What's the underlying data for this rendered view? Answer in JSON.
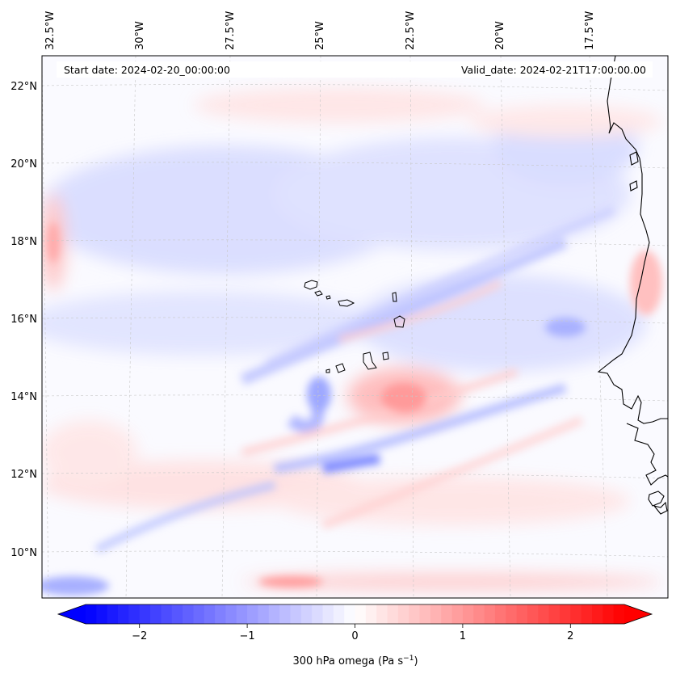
{
  "map": {
    "start_date": "Start date: 2024-02-20_00:00:00",
    "valid_date": "Valid_date: 2024-02-21T17:00:00.00",
    "lon_labels": [
      "32.5°W",
      "30°W",
      "27.5°W",
      "25°W",
      "22.5°W",
      "20°W",
      "17.5°W"
    ],
    "lat_labels": [
      "22°N",
      "20°N",
      "18°N",
      "16°N",
      "14°N",
      "12°N",
      "10°N"
    ],
    "field": "300 hPa omega",
    "units": "(Pa s⁻¹)",
    "colormap": "bwr",
    "colors": {
      "negative": "#0000ff",
      "zero": "#ffffff",
      "positive": "#ff0000",
      "grid": "#c8c8c8",
      "coast": "#000000"
    },
    "gridlines": true
  },
  "colorbar": {
    "label": "300 hPa omega (Pa s",
    "label_sup": "−1",
    "label_end": ")",
    "ticks": [
      "−2",
      "−1",
      "0",
      "1",
      "2"
    ],
    "tick_values": [
      -2,
      -1,
      0,
      1,
      2
    ],
    "range": [
      -2.5,
      2.5
    ],
    "extend": "both"
  }
}
